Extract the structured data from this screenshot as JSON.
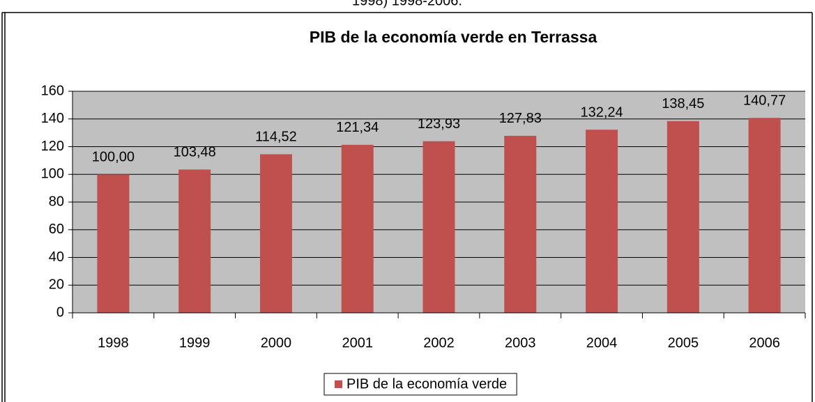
{
  "caption": "1998) 1998-2006.",
  "chart_data": {
    "type": "bar",
    "title": "PIB de la economía verde en Terrassa",
    "categories": [
      "1998",
      "1999",
      "2000",
      "2001",
      "2002",
      "2003",
      "2004",
      "2005",
      "2006"
    ],
    "series": [
      {
        "name": "PIB de la economía verde",
        "color": "#c0504d",
        "values": [
          100.0,
          103.48,
          114.52,
          121.34,
          123.93,
          127.83,
          132.24,
          138.45,
          140.77
        ],
        "value_labels": [
          "100,00",
          "103,48",
          "114,52",
          "121,34",
          "123,93",
          "127,83",
          "132,24",
          "138,45",
          "140,77"
        ]
      }
    ],
    "ylim": [
      0,
      160
    ],
    "yticks": [
      0,
      20,
      40,
      60,
      80,
      100,
      120,
      140,
      160
    ],
    "grid": true,
    "legend": "bottom",
    "plot_background": "#c0c0c0"
  }
}
